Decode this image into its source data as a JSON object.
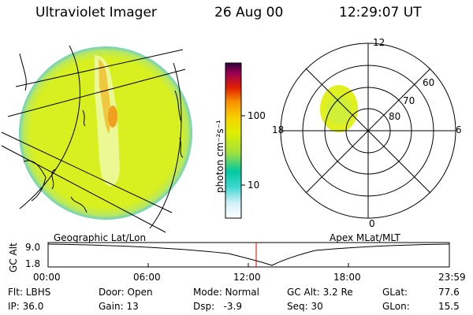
{
  "header": {
    "instrument": "Ultraviolet Imager",
    "date": "26 Aug 00",
    "time": "12:29:07 UT"
  },
  "colorbar": {
    "unit_label": "photon cm⁻²s⁻¹",
    "ticks": [
      "100",
      "10"
    ],
    "colors": [
      "#ffffff",
      "#d0f0f8",
      "#40d8d0",
      "#00c8a0",
      "#a0e040",
      "#e0f000",
      "#f8d000",
      "#f89000",
      "#e02000",
      "#a00050",
      "#300040"
    ]
  },
  "polar_plot": {
    "mlt_labels": {
      "top": "12",
      "left": "18",
      "right": "6",
      "bottom": "0"
    },
    "lat_labels": [
      "60",
      "70",
      "80"
    ]
  },
  "projection_labels": {
    "left": "Geographic Lat/Lon",
    "right": "Apex MLat/MLT"
  },
  "altitude_plot": {
    "axis_label": "GC Alt",
    "y_ticks": [
      "9.0",
      "1.8"
    ],
    "x_ticks": [
      "00:00",
      "06:00",
      "12:00",
      "18:00",
      "23:59"
    ],
    "current_time_color": "#e00000"
  },
  "info": {
    "flt": "Flt: LBHS",
    "ip": "IP: 36.0",
    "door": "Door: Open",
    "gain": "Gain: 13",
    "mode": "Mode: Normal",
    "dsp": "Dsp:   -3.9",
    "gcalt": "GC Alt: 3.2 Re",
    "seq": "Seq: 30",
    "glat_label": "GLat:",
    "glat_value": "77.6",
    "glon_label": "GLon:",
    "glon_value": "15.5"
  }
}
